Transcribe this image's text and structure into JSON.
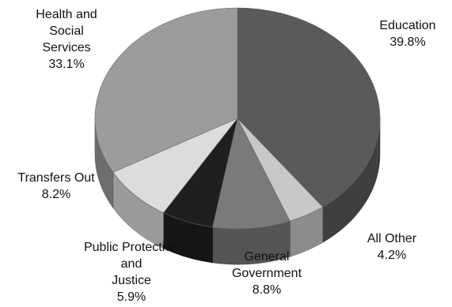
{
  "chart_data": {
    "type": "pie",
    "style": "3d",
    "title": "",
    "slices": [
      {
        "name": "Education",
        "label_lines": [
          "Education"
        ],
        "pct_text": "39.8%",
        "value": 39.8,
        "color": "#5a5a5a"
      },
      {
        "name": "All Other",
        "label_lines": [
          "All Other"
        ],
        "pct_text": "4.2%",
        "value": 4.2,
        "color": "#c8c8c8"
      },
      {
        "name": "General Government",
        "label_lines": [
          "General",
          "Government"
        ],
        "pct_text": "8.8%",
        "value": 8.8,
        "color": "#7a7a7a"
      },
      {
        "name": "Public Protection and Justice",
        "label_lines": [
          "Public Protection",
          "and",
          "Justice"
        ],
        "pct_text": "5.9%",
        "value": 5.9,
        "color": "#1f1f1f"
      },
      {
        "name": "Transfers Out",
        "label_lines": [
          "Transfers Out"
        ],
        "pct_text": "8.2%",
        "value": 8.2,
        "color": "#dcdcdc"
      },
      {
        "name": "Health and Social Services",
        "label_lines": [
          "Health and",
          "Social",
          "Services"
        ],
        "pct_text": "33.1%",
        "value": 33.1,
        "color": "#9c9c9c"
      }
    ],
    "legend": "none",
    "labels": "outside"
  }
}
